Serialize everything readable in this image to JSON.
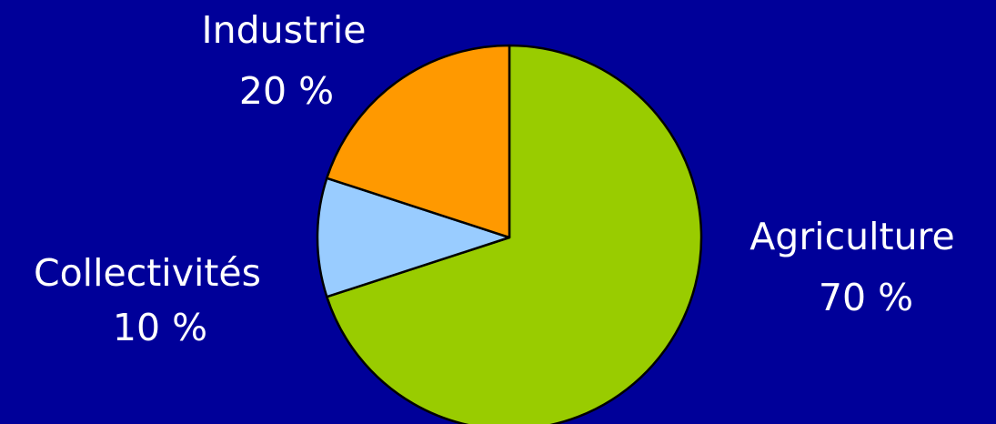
{
  "chart_data": {
    "type": "pie",
    "title": "",
    "slices": [
      {
        "label": "Agriculture",
        "value": 70,
        "value_label": "70 %",
        "color": "#99cc00"
      },
      {
        "label": "Collectivités",
        "value": 10,
        "value_label": "10 %",
        "color": "#99ccff"
      },
      {
        "label": "Industrie",
        "value": 20,
        "value_label": "20 %",
        "color": "#ff9900"
      }
    ],
    "start_direction": "top (12 o'clock)",
    "direction": "clockwise",
    "background_color": "#000099",
    "label_color": "#ffffff",
    "outline_color": "#000000",
    "legend": "none"
  }
}
